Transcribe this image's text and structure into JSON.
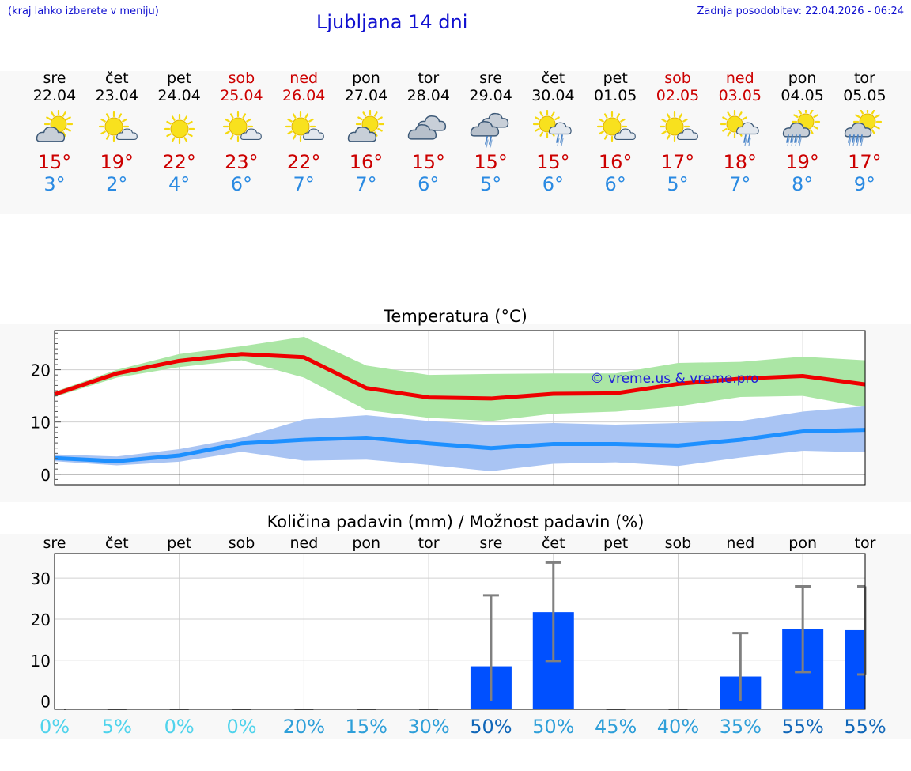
{
  "header": {
    "hint": "(kraj lahko izberete v meniju)",
    "title": "Ljubljana 14 dni",
    "updated": "Zadnja posodobitev: 22.04.2026 - 06:24"
  },
  "days": [
    {
      "name": "sre",
      "date": "22.04",
      "weekend": false,
      "icon": "sun-cloud-icon",
      "max": "15°",
      "min": "3°"
    },
    {
      "name": "čet",
      "date": "23.04",
      "weekend": false,
      "icon": "sun-small-cloud-icon",
      "max": "19°",
      "min": "2°"
    },
    {
      "name": "pet",
      "date": "24.04",
      "weekend": false,
      "icon": "sun-icon",
      "max": "22°",
      "min": "4°"
    },
    {
      "name": "sob",
      "date": "25.04",
      "weekend": true,
      "icon": "sun-small-cloud-icon",
      "max": "23°",
      "min": "6°"
    },
    {
      "name": "ned",
      "date": "26.04",
      "weekend": true,
      "icon": "sun-small-cloud-icon",
      "max": "22°",
      "min": "7°"
    },
    {
      "name": "pon",
      "date": "27.04",
      "weekend": false,
      "icon": "sun-cloud-icon",
      "max": "16°",
      "min": "7°"
    },
    {
      "name": "tor",
      "date": "28.04",
      "weekend": false,
      "icon": "clouds-icon",
      "max": "15°",
      "min": "6°"
    },
    {
      "name": "sre",
      "date": "29.04",
      "weekend": false,
      "icon": "cloud-rain-icon",
      "max": "15°",
      "min": "5°"
    },
    {
      "name": "čet",
      "date": "30.04",
      "weekend": false,
      "icon": "sun-cloud-rain-icon",
      "max": "15°",
      "min": "6°"
    },
    {
      "name": "pet",
      "date": "01.05",
      "weekend": false,
      "icon": "sun-small-cloud-icon",
      "max": "16°",
      "min": "6°"
    },
    {
      "name": "sob",
      "date": "02.05",
      "weekend": true,
      "icon": "sun-small-cloud-icon",
      "max": "17°",
      "min": "5°"
    },
    {
      "name": "ned",
      "date": "03.05",
      "weekend": true,
      "icon": "sun-cloud-rain-icon",
      "max": "18°",
      "min": "7°"
    },
    {
      "name": "pon",
      "date": "04.05",
      "weekend": false,
      "icon": "sun-cloud-heavy-rain-icon",
      "max": "19°",
      "min": "8°"
    },
    {
      "name": "tor",
      "date": "05.05",
      "weekend": false,
      "icon": "sun-cloud-heavy-rain-icon",
      "max": "17°",
      "min": "9°"
    }
  ],
  "colors": {
    "max_line": "#ee0000",
    "max_band": "#abe6a5",
    "min_line": "#1e90ff",
    "min_band": "#a9c4f3",
    "bar": "#0050ff",
    "error": "#808080",
    "weekend": "#cc0000",
    "header_blue": "#1010d0"
  },
  "chart_data": [
    {
      "type": "line",
      "title": "Temperatura (°C)",
      "watermark": "© vreme.us & vreme.pro",
      "x": [
        0,
        1,
        2,
        3,
        4,
        5,
        6,
        7,
        8,
        9,
        10,
        11,
        12,
        13
      ],
      "ylim": [
        -2,
        27.5
      ],
      "yticks": [
        0,
        10,
        20
      ],
      "grid": true,
      "series": [
        {
          "role": "max",
          "values": [
            15.3,
            19.3,
            21.7,
            23.0,
            22.4,
            16.5,
            14.7,
            14.5,
            15.4,
            15.5,
            17.3,
            18.3,
            18.8,
            17.2
          ],
          "low": [
            14.8,
            18.5,
            20.5,
            21.8,
            18.5,
            12.3,
            10.8,
            10.2,
            11.6,
            12.0,
            13.0,
            14.8,
            15.0,
            12.8
          ],
          "high": [
            15.8,
            20.0,
            23.0,
            24.5,
            26.3,
            20.8,
            19.0,
            19.2,
            19.3,
            19.3,
            21.3,
            21.5,
            22.5,
            21.8
          ]
        },
        {
          "role": "min",
          "values": [
            3.1,
            2.5,
            3.6,
            5.9,
            6.6,
            7.0,
            5.9,
            5.0,
            5.8,
            5.8,
            5.5,
            6.6,
            8.2,
            8.5
          ],
          "low": [
            2.5,
            1.7,
            2.4,
            4.3,
            2.6,
            2.8,
            1.8,
            0.6,
            2.0,
            2.3,
            1.6,
            3.2,
            4.5,
            4.2
          ],
          "high": [
            3.8,
            3.4,
            4.8,
            7.0,
            10.5,
            11.3,
            10.2,
            9.4,
            9.8,
            9.5,
            9.8,
            10.2,
            12.0,
            13.0
          ]
        }
      ]
    },
    {
      "type": "bar",
      "title": "Količina padavin (mm) / Možnost padavin (%)",
      "categories": [
        "sre",
        "čet",
        "pet",
        "sob",
        "ned",
        "pon",
        "tor",
        "sre",
        "čet",
        "pet",
        "sob",
        "ned",
        "pon",
        "tor"
      ],
      "values": [
        0,
        0,
        0,
        0,
        0,
        0,
        0,
        8.5,
        21.7,
        0,
        0,
        6.0,
        17.6,
        17.3
      ],
      "err_low": [
        0,
        0,
        0,
        0,
        0,
        0,
        0,
        0,
        9.8,
        0,
        0,
        0,
        7.1,
        6.5
      ],
      "err_high": [
        0,
        0,
        0,
        0,
        0,
        0,
        0,
        25.8,
        33.8,
        0,
        0,
        16.6,
        28.0,
        28.0
      ],
      "probability": [
        "0%",
        "5%",
        "0%",
        "0%",
        "20%",
        "15%",
        "30%",
        "50%",
        "50%",
        "45%",
        "40%",
        "35%",
        "55%",
        "55%"
      ],
      "probability_colors": [
        "#4fd3ec",
        "#4fd3ec",
        "#4fd3ec",
        "#4fd3ec",
        "#2e9fd9",
        "#2e9fd9",
        "#2e9fd9",
        "#1167b8",
        "#2e9fd9",
        "#2e9fd9",
        "#2e9fd9",
        "#2e9fd9",
        "#1167b8",
        "#1167b8"
      ],
      "ylim": [
        -2,
        36
      ],
      "yticks": [
        0,
        10,
        20,
        30
      ],
      "grid": true
    }
  ]
}
